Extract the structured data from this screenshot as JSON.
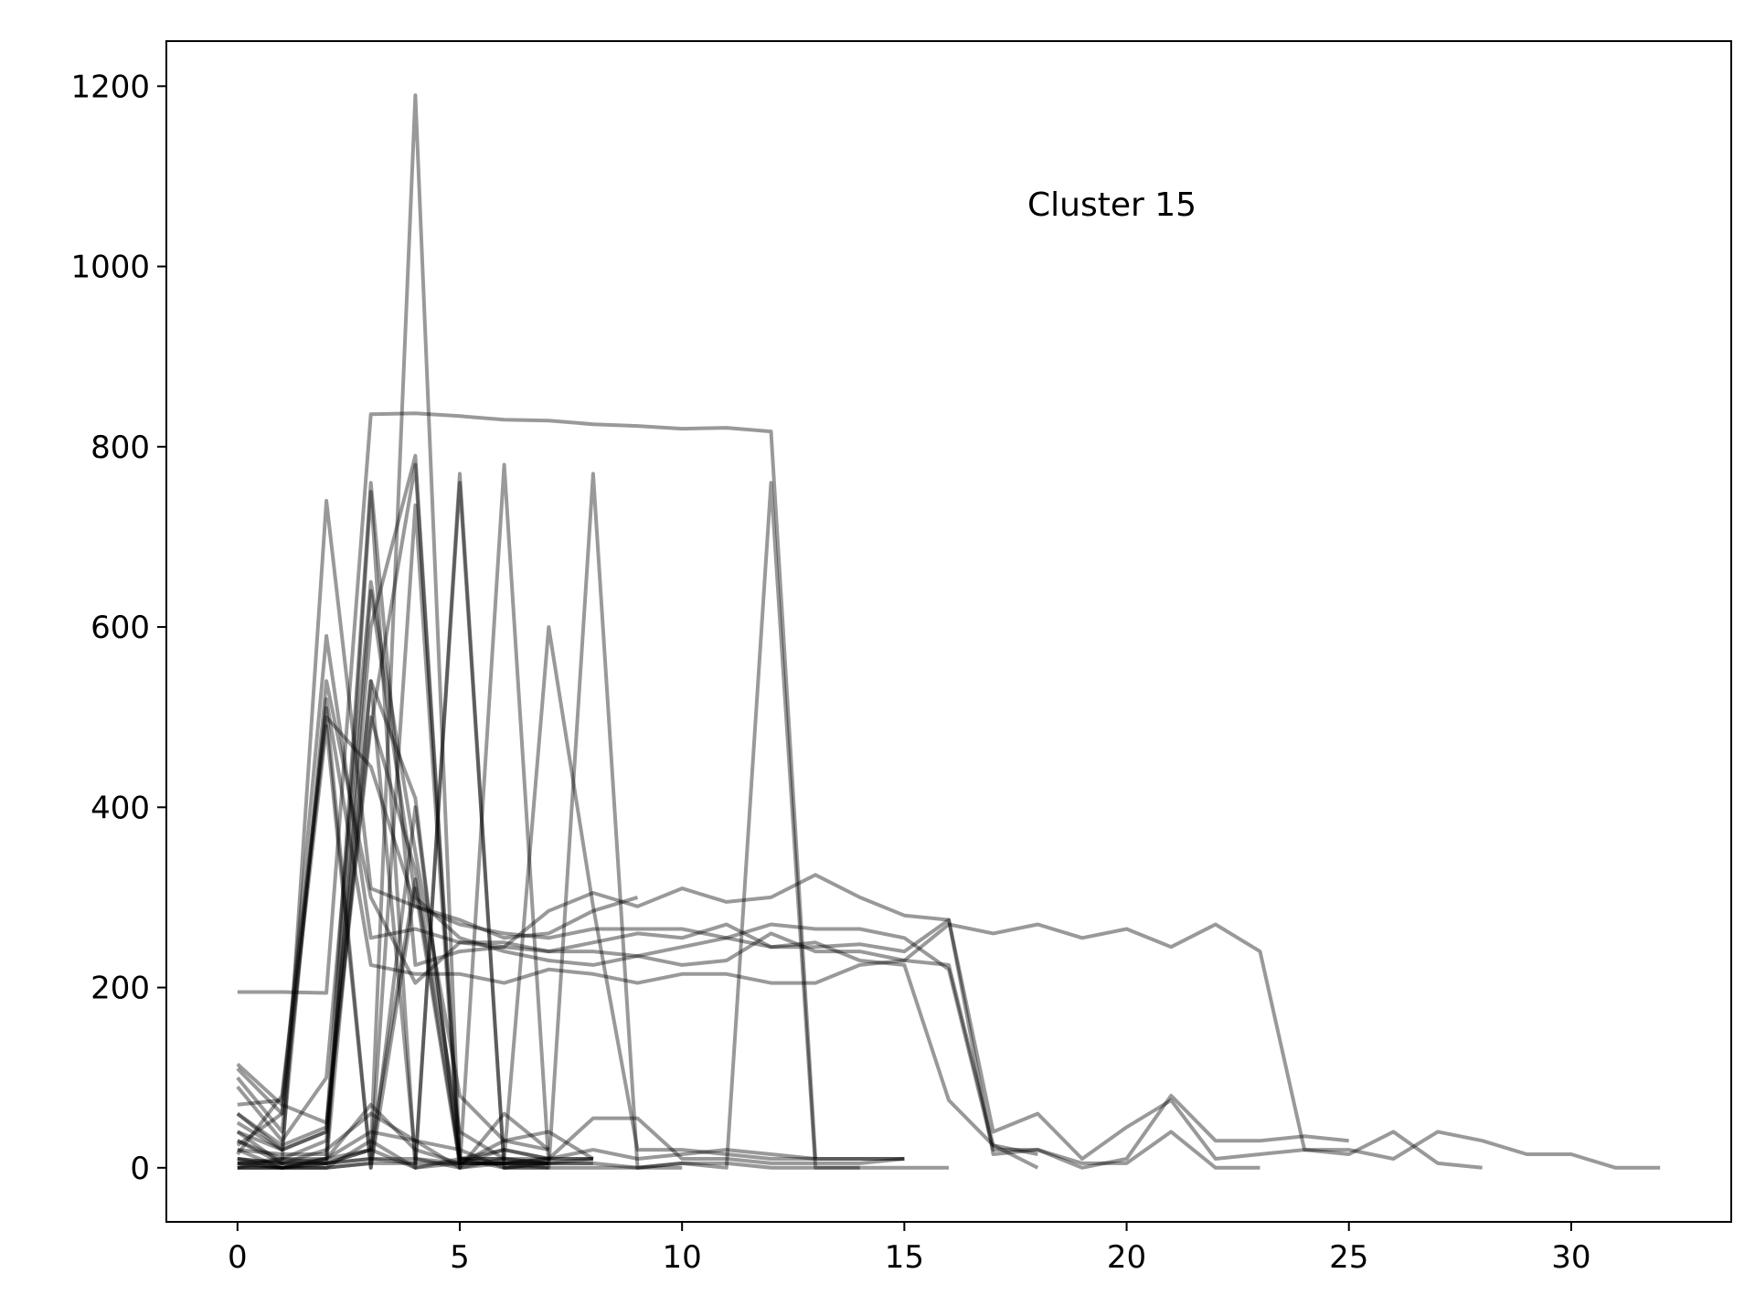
{
  "chart_data": {
    "type": "line",
    "title": "",
    "xlabel": "",
    "ylabel": "",
    "annotation": "Cluster 15",
    "xlim": [
      -1.6,
      33.6
    ],
    "ylim": [
      -60,
      1250
    ],
    "xticks": [
      0,
      5,
      10,
      15,
      20,
      25,
      30
    ],
    "yticks": [
      0,
      200,
      400,
      600,
      800,
      1000,
      1200
    ],
    "grid": false,
    "legend": "none",
    "line_color": "#000000",
    "line_opacity": 0.4,
    "series": [
      {
        "x": [
          0,
          1,
          2,
          3,
          4,
          5,
          6,
          7,
          8,
          9,
          10,
          11,
          12,
          13
        ],
        "y": [
          195,
          195,
          194,
          836,
          837,
          834,
          830,
          829,
          825,
          823,
          820,
          821,
          817,
          10
        ]
      },
      {
        "x": [
          0,
          1,
          2,
          3,
          4,
          5,
          6,
          7,
          8,
          9
        ],
        "y": [
          10,
          5,
          740,
          310,
          290,
          275,
          255,
          260,
          285,
          300
        ]
      },
      {
        "x": [
          0,
          1,
          2,
          3,
          4,
          5,
          6,
          7,
          8,
          9,
          10,
          11,
          12,
          13,
          14,
          15,
          16,
          17,
          18,
          19,
          20,
          21,
          22,
          23,
          24,
          25,
          26,
          27,
          28
        ],
        "y": [
          110,
          60,
          590,
          255,
          265,
          250,
          250,
          240,
          250,
          260,
          255,
          270,
          245,
          245,
          248,
          240,
          275,
          40,
          60,
          10,
          45,
          75,
          10,
          15,
          20,
          15,
          40,
          5,
          0
        ]
      },
      {
        "x": [
          0,
          1,
          2,
          3,
          4,
          5,
          6,
          7,
          8,
          9,
          10,
          11,
          12,
          13,
          14,
          15,
          16,
          17,
          18,
          19,
          20,
          21,
          22,
          23,
          24,
          25,
          26,
          27,
          28,
          29,
          30,
          31,
          32
        ],
        "y": [
          100,
          40,
          520,
          225,
          215,
          215,
          205,
          220,
          215,
          205,
          215,
          215,
          205,
          205,
          225,
          230,
          270,
          260,
          270,
          255,
          265,
          245,
          270,
          240,
          20,
          20,
          10,
          40,
          30,
          15,
          15,
          0,
          0
        ]
      },
      {
        "x": [
          0,
          1,
          2,
          3,
          4,
          5,
          6,
          7,
          8,
          9,
          10,
          11,
          12,
          13,
          14,
          15,
          16,
          17,
          18,
          19,
          20,
          21,
          22,
          23,
          24,
          25
        ],
        "y": [
          60,
          20,
          540,
          300,
          205,
          250,
          245,
          285,
          305,
          290,
          310,
          295,
          300,
          325,
          300,
          280,
          275,
          15,
          20,
          0,
          10,
          80,
          30,
          30,
          35,
          30
        ]
      },
      {
        "x": [
          0,
          1,
          2,
          3,
          4,
          5,
          6,
          7,
          8,
          9,
          10,
          11,
          12,
          13,
          14,
          15,
          16,
          17,
          18,
          19,
          20,
          21,
          22,
          23
        ],
        "y": [
          70,
          75,
          500,
          445,
          290,
          270,
          260,
          255,
          265,
          265,
          265,
          255,
          270,
          265,
          265,
          255,
          220,
          20,
          20,
          5,
          5,
          40,
          0,
          0
        ]
      },
      {
        "x": [
          0,
          1,
          2,
          3,
          4,
          5,
          6,
          7,
          8,
          9,
          10,
          11,
          12,
          13,
          14,
          15,
          16,
          17,
          18
        ],
        "y": [
          40,
          20,
          40,
          760,
          225,
          240,
          245,
          240,
          240,
          235,
          225,
          230,
          260,
          240,
          240,
          230,
          225,
          25,
          0
        ]
      },
      {
        "x": [
          0,
          1,
          2,
          3,
          4,
          5,
          6,
          7,
          8
        ],
        "y": [
          5,
          10,
          10,
          750,
          0,
          5,
          5,
          10,
          10
        ]
      },
      {
        "x": [
          0,
          1,
          2,
          3,
          4,
          5,
          6,
          7,
          8,
          9,
          10,
          11,
          12,
          13,
          14,
          15,
          16,
          17,
          18
        ],
        "y": [
          20,
          15,
          15,
          640,
          300,
          255,
          240,
          230,
          225,
          235,
          245,
          255,
          245,
          250,
          230,
          225,
          75,
          25,
          15
        ]
      },
      {
        "x": [
          0,
          1,
          2,
          3,
          4,
          5,
          6,
          7,
          8,
          9,
          10,
          11,
          12,
          13,
          14,
          15
        ],
        "y": [
          0,
          10,
          30,
          600,
          790,
          10,
          10,
          10,
          55,
          55,
          10,
          10,
          5,
          5,
          5,
          10
        ]
      },
      {
        "x": [
          0,
          1,
          2,
          3,
          4,
          5,
          6,
          7,
          8,
          9,
          10,
          11,
          12,
          13,
          14,
          15,
          16
        ],
        "y": [
          30,
          10,
          5,
          20,
          1190,
          10,
          10,
          5,
          5,
          0,
          5,
          5,
          0,
          0,
          0,
          0,
          0
        ]
      },
      {
        "x": [
          0,
          1,
          2,
          3,
          4,
          5,
          6,
          7,
          8,
          9,
          10,
          11,
          12,
          13,
          14,
          15
        ],
        "y": [
          50,
          20,
          40,
          490,
          780,
          5,
          20,
          10,
          20,
          10,
          15,
          20,
          15,
          10,
          10,
          10
        ]
      },
      {
        "x": [
          0,
          1,
          2,
          3,
          4,
          5,
          6,
          7,
          8
        ],
        "y": [
          10,
          0,
          0,
          5,
          735,
          0,
          5,
          10,
          10
        ]
      },
      {
        "x": [
          0,
          1,
          2,
          3,
          4,
          5,
          6,
          7,
          8
        ],
        "y": [
          5,
          0,
          0,
          30,
          0,
          770,
          0,
          5,
          5
        ]
      },
      {
        "x": [
          0,
          1,
          2,
          3,
          4,
          5,
          6,
          7
        ],
        "y": [
          5,
          0,
          5,
          10,
          5,
          760,
          0,
          5
        ]
      },
      {
        "x": [
          0,
          1,
          2,
          3,
          4,
          5,
          6,
          7,
          8
        ],
        "y": [
          0,
          0,
          5,
          10,
          10,
          0,
          780,
          5,
          10
        ]
      },
      {
        "x": [
          0,
          1,
          2,
          3,
          4,
          5,
          6,
          7,
          8,
          9,
          10,
          11,
          12,
          13,
          14,
          15
        ],
        "y": [
          20,
          0,
          10,
          40,
          30,
          0,
          10,
          600,
          290,
          20,
          20,
          15,
          10,
          10,
          10,
          10
        ]
      },
      {
        "x": [
          0,
          1,
          2,
          3,
          4,
          5,
          6,
          7,
          8,
          9,
          10
        ],
        "y": [
          30,
          5,
          20,
          60,
          30,
          20,
          0,
          0,
          770,
          0,
          0
        ]
      },
      {
        "x": [
          0,
          1,
          2,
          3,
          4,
          5,
          6,
          7,
          8,
          9,
          10,
          11,
          12,
          13,
          14
        ],
        "y": [
          0,
          0,
          10,
          20,
          0,
          10,
          0,
          0,
          0,
          0,
          5,
          0,
          760,
          0,
          0
        ]
      },
      {
        "x": [
          0,
          1,
          2,
          3,
          4,
          5,
          6,
          7
        ],
        "y": [
          115,
          70,
          50,
          540,
          410,
          0,
          60,
          20
        ]
      },
      {
        "x": [
          0,
          1,
          2,
          3,
          4,
          5,
          6,
          7,
          8
        ],
        "y": [
          90,
          30,
          100,
          650,
          350,
          80,
          30,
          40,
          10
        ]
      },
      {
        "x": [
          0,
          1,
          2,
          3,
          4,
          5,
          6,
          7
        ],
        "y": [
          60,
          25,
          45,
          500,
          330,
          40,
          10,
          5
        ]
      },
      {
        "x": [
          0,
          1,
          2,
          3,
          4,
          5,
          6,
          7
        ],
        "y": [
          15,
          80,
          510,
          0,
          400,
          10,
          20,
          10
        ]
      },
      {
        "x": [
          0,
          1,
          2,
          3,
          4,
          5,
          6,
          7
        ],
        "y": [
          25,
          60,
          490,
          0,
          310,
          5,
          5,
          5
        ]
      },
      {
        "x": [
          0,
          1,
          2,
          3,
          4,
          5,
          6,
          7
        ],
        "y": [
          40,
          5,
          5,
          20,
          320,
          10,
          5,
          5
        ]
      },
      {
        "x": [
          0,
          1,
          2,
          3,
          4,
          5,
          6,
          7
        ],
        "y": [
          10,
          5,
          10,
          70,
          20,
          5,
          30,
          20
        ]
      },
      {
        "x": [
          0,
          1,
          2,
          3,
          4,
          5,
          6,
          7
        ],
        "y": [
          5,
          5,
          5,
          540,
          10,
          5,
          5,
          5
        ]
      },
      {
        "x": [
          0,
          1,
          2,
          3,
          4,
          5,
          6,
          7
        ],
        "y": [
          0,
          0,
          0,
          5,
          5,
          5,
          5,
          0
        ]
      }
    ]
  }
}
